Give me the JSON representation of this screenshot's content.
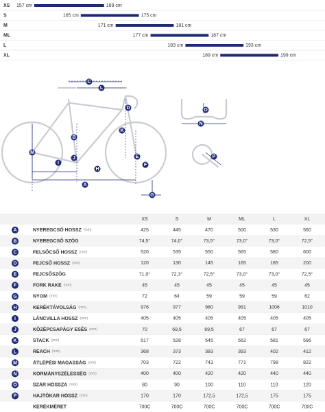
{
  "size_chart": {
    "rows": [
      {
        "size": "XS",
        "min": 157,
        "max": 169,
        "min_label": "157 cm",
        "max_label": "169 cm"
      },
      {
        "size": "S",
        "min": 165,
        "max": 175,
        "min_label": "165 cm",
        "max_label": "175 cm"
      },
      {
        "size": "M",
        "min": 171,
        "max": 181,
        "min_label": "171 cm",
        "max_label": "181 cm"
      },
      {
        "size": "ML",
        "min": 177,
        "max": 187,
        "min_label": "177 cm",
        "max_label": "187 cm"
      },
      {
        "size": "L",
        "min": 183,
        "max": 193,
        "min_label": "183 cm",
        "max_label": "193 cm"
      },
      {
        "size": "XL",
        "min": 189,
        "max": 199,
        "min_label": "189 cm",
        "max_label": "199 cm"
      }
    ]
  },
  "table": {
    "header": [
      "XS",
      "S",
      "M",
      "ML",
      "L",
      "XL"
    ],
    "rows": [
      {
        "code": "A",
        "name": "NYEREGCSŐ HOSSZ",
        "unit": "(mm)",
        "values": [
          "425",
          "445",
          "470",
          "500",
          "530",
          "560"
        ]
      },
      {
        "code": "B",
        "name": "NYEREGCSŐ SZÖG",
        "values": [
          "74,5°",
          "74,0°",
          "73,5°",
          "73,0°",
          "73,0°",
          "72,5°"
        ]
      },
      {
        "code": "C",
        "name": "FELSŐCSŐ HOSSZ",
        "unit": "(mm)",
        "values": [
          "520",
          "535",
          "550",
          "565",
          "580",
          "600"
        ]
      },
      {
        "code": "D",
        "name": "FEJCSŐ HOSSZ",
        "unit": "(mm)",
        "values": [
          "120",
          "130",
          "145",
          "165",
          "185",
          "200"
        ]
      },
      {
        "code": "E",
        "name": "FEJCSŐSZÖG",
        "values": [
          "71,0°",
          "72,3°",
          "72,5°",
          "73,0°",
          "73,0°",
          "72,5°"
        ]
      },
      {
        "code": "F",
        "name": "FORK RAKE",
        "unit": "(mm)",
        "values": [
          "45",
          "45",
          "45",
          "45",
          "45",
          "45"
        ]
      },
      {
        "code": "G",
        "name": "NYOM",
        "unit": "(mm)",
        "values": [
          "72",
          "64",
          "59",
          "59",
          "59",
          "62"
        ]
      },
      {
        "code": "H",
        "name": "KERÉKTÁVOLSÁG",
        "unit": "(mm)",
        "values": [
          "976",
          "977",
          "980",
          "991",
          "1006",
          "1010"
        ]
      },
      {
        "code": "I",
        "name": "LÁNCVILLA HOSSZ",
        "unit": "(mm)",
        "values": [
          "405",
          "405",
          "405",
          "405",
          "405",
          "405"
        ]
      },
      {
        "code": "J",
        "name": "KÖZÉPCSAPÁGY ESÉS",
        "unit": "(mm)",
        "values": [
          "70",
          "69,5",
          "69,5",
          "67",
          "67",
          "67"
        ]
      },
      {
        "code": "K",
        "name": "STACK",
        "unit": "(mm)",
        "values": [
          "517",
          "528",
          "545",
          "562",
          "581",
          "596"
        ]
      },
      {
        "code": "L",
        "name": "REACH",
        "unit": "(mm)",
        "values": [
          "368",
          "373",
          "383",
          "393",
          "402",
          "412"
        ]
      },
      {
        "code": "M",
        "name": "ÁTLÉPÉSI MAGASSÁG",
        "unit": "(mm)",
        "values": [
          "703",
          "722",
          "743",
          "771",
          "798",
          "822"
        ]
      },
      {
        "code": "N",
        "name": "KORMÁNYSZÉLESSÉG",
        "unit": "(mm)",
        "values": [
          "400",
          "400",
          "420",
          "420",
          "440",
          "440"
        ]
      },
      {
        "code": "O",
        "name": "SZÁR HOSSZA",
        "unit": "(mm)",
        "values": [
          "80",
          "90",
          "100",
          "110",
          "110",
          "120"
        ]
      },
      {
        "code": "P",
        "name": "HAJTÓKAR HOSSZ",
        "unit": "(mm)",
        "values": [
          "170",
          "170",
          "172,5",
          "172,5",
          "175",
          "175"
        ]
      },
      {
        "name": "KERÉKMÉRET",
        "values": [
          "700C",
          "700C",
          "700C",
          "700C",
          "700C",
          "700C"
        ]
      }
    ]
  }
}
